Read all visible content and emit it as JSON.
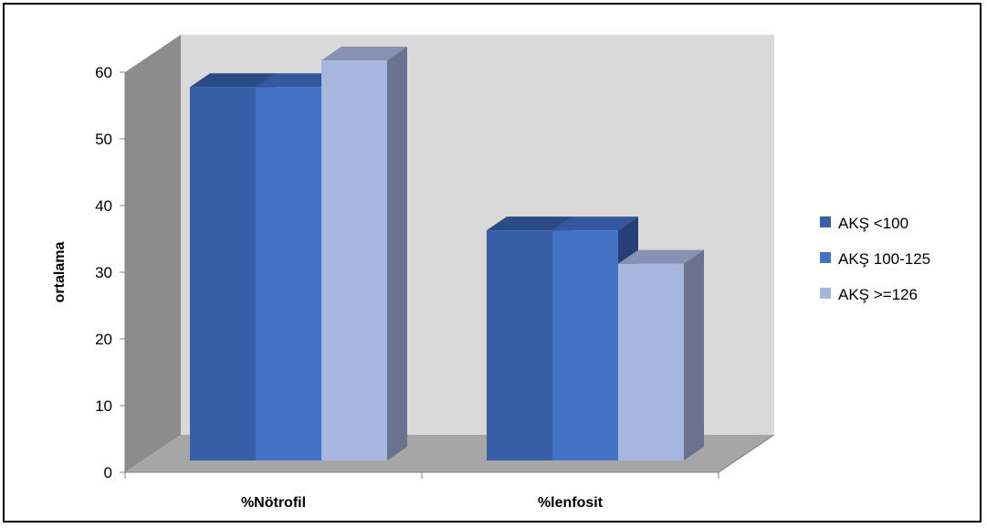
{
  "chart_data": {
    "type": "bar",
    "categories": [
      "%Nötrofil",
      "%lenfosit"
    ],
    "series": [
      {
        "name": "AKŞ <100",
        "values": [
          56,
          34.5
        ]
      },
      {
        "name": "AKŞ 100-125",
        "values": [
          56,
          34.5
        ]
      },
      {
        "name": "AKŞ >=126",
        "values": [
          60,
          29.5
        ]
      }
    ],
    "title": "",
    "xlabel": "",
    "ylabel": "ortalama",
    "ylim": [
      0,
      60
    ],
    "yticks": [
      0,
      10,
      20,
      30,
      40,
      50,
      60
    ],
    "legend": "right",
    "three_d": true,
    "colors": {
      "series": [
        "#365fa8",
        "#4472c4",
        "#a7b6dc"
      ],
      "series_top": [
        "#2b4b85",
        "#3457a0",
        "#8791b3"
      ],
      "series_side": [
        "#213a69",
        "#283f75",
        "#69738f"
      ],
      "back_wall": "#d9d9d9",
      "side_wall": "#8c8c8c",
      "floor": "#a6a6a6"
    }
  }
}
